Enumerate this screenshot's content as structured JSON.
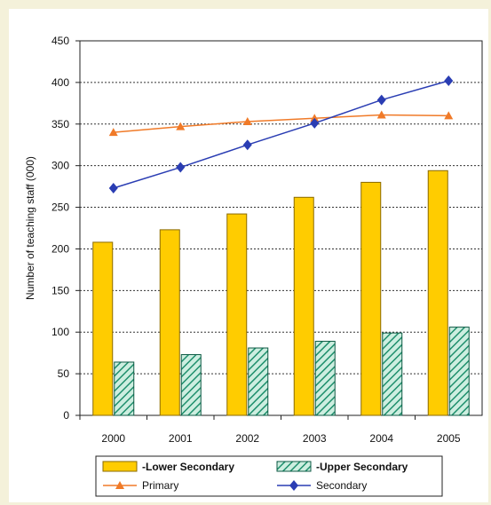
{
  "chart_data": {
    "type": "bar",
    "title": "",
    "xlabel": "",
    "ylabel": "Number of teaching staff (000)",
    "categories": [
      "2000",
      "2001",
      "2002",
      "2003",
      "2004",
      "2005"
    ],
    "ylim": [
      0,
      450
    ],
    "yticks": [
      0,
      50,
      100,
      150,
      200,
      250,
      300,
      350,
      400,
      450
    ],
    "grid": true,
    "legend_position": "bottom",
    "bar_series": [
      {
        "name": "-Lower Secondary",
        "values": [
          208,
          223,
          242,
          262,
          280,
          294
        ],
        "color": "#ffcc00"
      },
      {
        "name": "-Upper Secondary",
        "values": [
          64,
          73,
          81,
          89,
          99,
          106
        ],
        "color": "#2e9e7e"
      }
    ],
    "line_series": [
      {
        "name": "Primary",
        "values": [
          340,
          347,
          353,
          357,
          361,
          360
        ],
        "color": "#f07a28",
        "marker": "triangle"
      },
      {
        "name": "Secondary",
        "values": [
          273,
          298,
          325,
          351,
          379,
          402
        ],
        "color": "#2a3db3",
        "marker": "diamond"
      }
    ]
  }
}
